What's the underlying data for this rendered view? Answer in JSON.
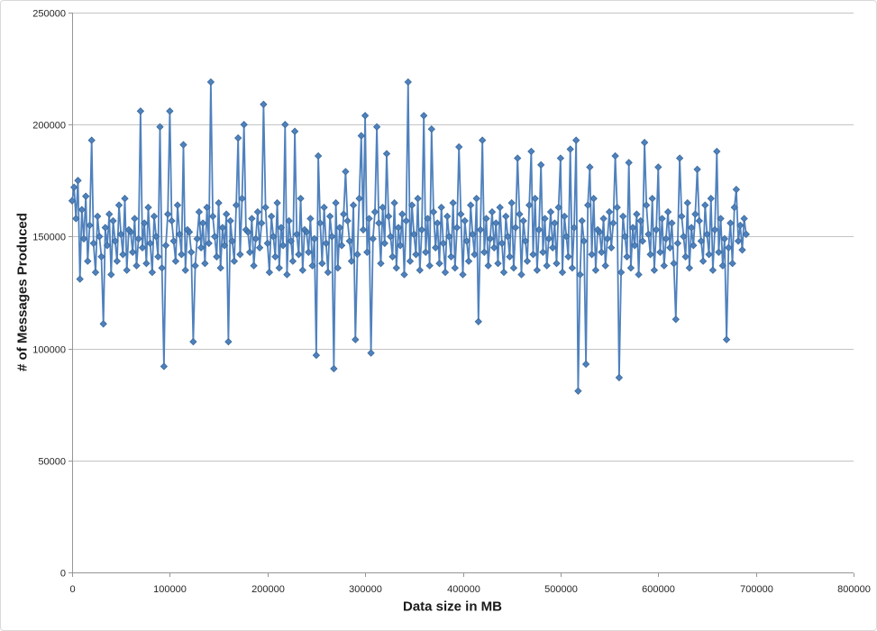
{
  "page": {
    "background": "#FFFFFF",
    "frame_border_color": "#D9D9D9"
  },
  "chart_data": {
    "type": "line",
    "title": "",
    "xlabel": "Data size in MB",
    "ylabel": "# of Messages Produced",
    "xlim": [
      0,
      800000
    ],
    "ylim": [
      0,
      250000
    ],
    "x_ticks": [
      "0",
      "100000",
      "200000",
      "300000",
      "400000",
      "500000",
      "600000",
      "700000",
      "800000"
    ],
    "y_ticks": [
      "0",
      "50000",
      "100000",
      "150000",
      "200000",
      "250000"
    ],
    "grid": "horizontal-major",
    "legend": "none",
    "colors": {
      "series": "#4F81BD",
      "marker_border": "#3A6A9B",
      "gridline": "#C4C4C4",
      "axis": "#969696",
      "tick_text": "#262626",
      "title_text": "#1A1A1A"
    },
    "series": [
      {
        "marker": "diamond",
        "line_width": 1.8,
        "x_start": 0,
        "x_step": 2000,
        "y": [
          166000,
          172000,
          158000,
          175000,
          131000,
          162000,
          149000,
          168000,
          139000,
          155000,
          193000,
          147000,
          134000,
          159000,
          150000,
          141000,
          111000,
          154000,
          146000,
          160000,
          133000,
          157000,
          148000,
          139000,
          164000,
          151000,
          142000,
          167000,
          135000,
          153000,
          152000,
          143000,
          158000,
          137000,
          149000,
          206000,
          145000,
          156000,
          138000,
          163000,
          147000,
          134000,
          159000,
          150000,
          141000,
          199000,
          136000,
          92000,
          146000,
          160000,
          206000,
          157000,
          148000,
          139000,
          164000,
          151000,
          142000,
          191000,
          135000,
          153000,
          152000,
          143000,
          103000,
          137000,
          149000,
          161000,
          145000,
          156000,
          138000,
          163000,
          147000,
          219000,
          159000,
          150000,
          141000,
          165000,
          136000,
          154000,
          146000,
          160000,
          103000,
          157000,
          148000,
          139000,
          164000,
          194000,
          142000,
          167000,
          200000,
          153000,
          152000,
          143000,
          158000,
          137000,
          149000,
          161000,
          145000,
          156000,
          209000,
          163000,
          147000,
          134000,
          159000,
          150000,
          141000,
          165000,
          136000,
          154000,
          146000,
          200000,
          133000,
          157000,
          148000,
          139000,
          197000,
          151000,
          142000,
          167000,
          135000,
          153000,
          152000,
          143000,
          158000,
          137000,
          149000,
          97000,
          186000,
          156000,
          138000,
          163000,
          147000,
          134000,
          159000,
          150000,
          91000,
          165000,
          136000,
          154000,
          146000,
          160000,
          179000,
          157000,
          148000,
          139000,
          164000,
          104000,
          142000,
          167000,
          195000,
          153000,
          204000,
          143000,
          158000,
          98000,
          149000,
          161000,
          199000,
          156000,
          138000,
          163000,
          147000,
          187000,
          159000,
          150000,
          141000,
          165000,
          136000,
          154000,
          146000,
          160000,
          133000,
          157000,
          219000,
          139000,
          164000,
          151000,
          142000,
          167000,
          135000,
          153000,
          204000,
          143000,
          158000,
          137000,
          198000,
          161000,
          145000,
          156000,
          138000,
          163000,
          147000,
          134000,
          159000,
          150000,
          141000,
          165000,
          136000,
          154000,
          190000,
          160000,
          133000,
          157000,
          148000,
          139000,
          164000,
          151000,
          142000,
          167000,
          112000,
          153000,
          193000,
          143000,
          158000,
          137000,
          149000,
          161000,
          145000,
          156000,
          138000,
          163000,
          147000,
          134000,
          159000,
          150000,
          141000,
          165000,
          136000,
          154000,
          185000,
          160000,
          133000,
          157000,
          148000,
          139000,
          164000,
          188000,
          142000,
          167000,
          135000,
          153000,
          182000,
          143000,
          158000,
          137000,
          149000,
          161000,
          145000,
          156000,
          138000,
          163000,
          185000,
          134000,
          159000,
          150000,
          141000,
          189000,
          136000,
          154000,
          193000,
          81000,
          133000,
          157000,
          148000,
          93000,
          164000,
          181000,
          142000,
          167000,
          135000,
          153000,
          152000,
          143000,
          158000,
          137000,
          149000,
          161000,
          145000,
          156000,
          186000,
          163000,
          87000,
          134000,
          159000,
          150000,
          141000,
          183000,
          136000,
          154000,
          146000,
          160000,
          133000,
          157000,
          148000,
          192000,
          164000,
          151000,
          142000,
          167000,
          135000,
          153000,
          181000,
          143000,
          158000,
          137000,
          149000,
          161000,
          145000,
          156000,
          138000,
          113000,
          147000,
          185000,
          159000,
          150000,
          141000,
          165000,
          136000,
          154000,
          146000,
          160000,
          180000,
          157000,
          148000,
          139000,
          164000,
          151000,
          142000,
          167000,
          135000,
          153000,
          188000,
          143000,
          158000,
          137000,
          149000,
          104000,
          145000,
          156000,
          138000,
          163000,
          171000,
          148000,
          155000,
          144000,
          158000,
          151000
        ]
      }
    ]
  }
}
